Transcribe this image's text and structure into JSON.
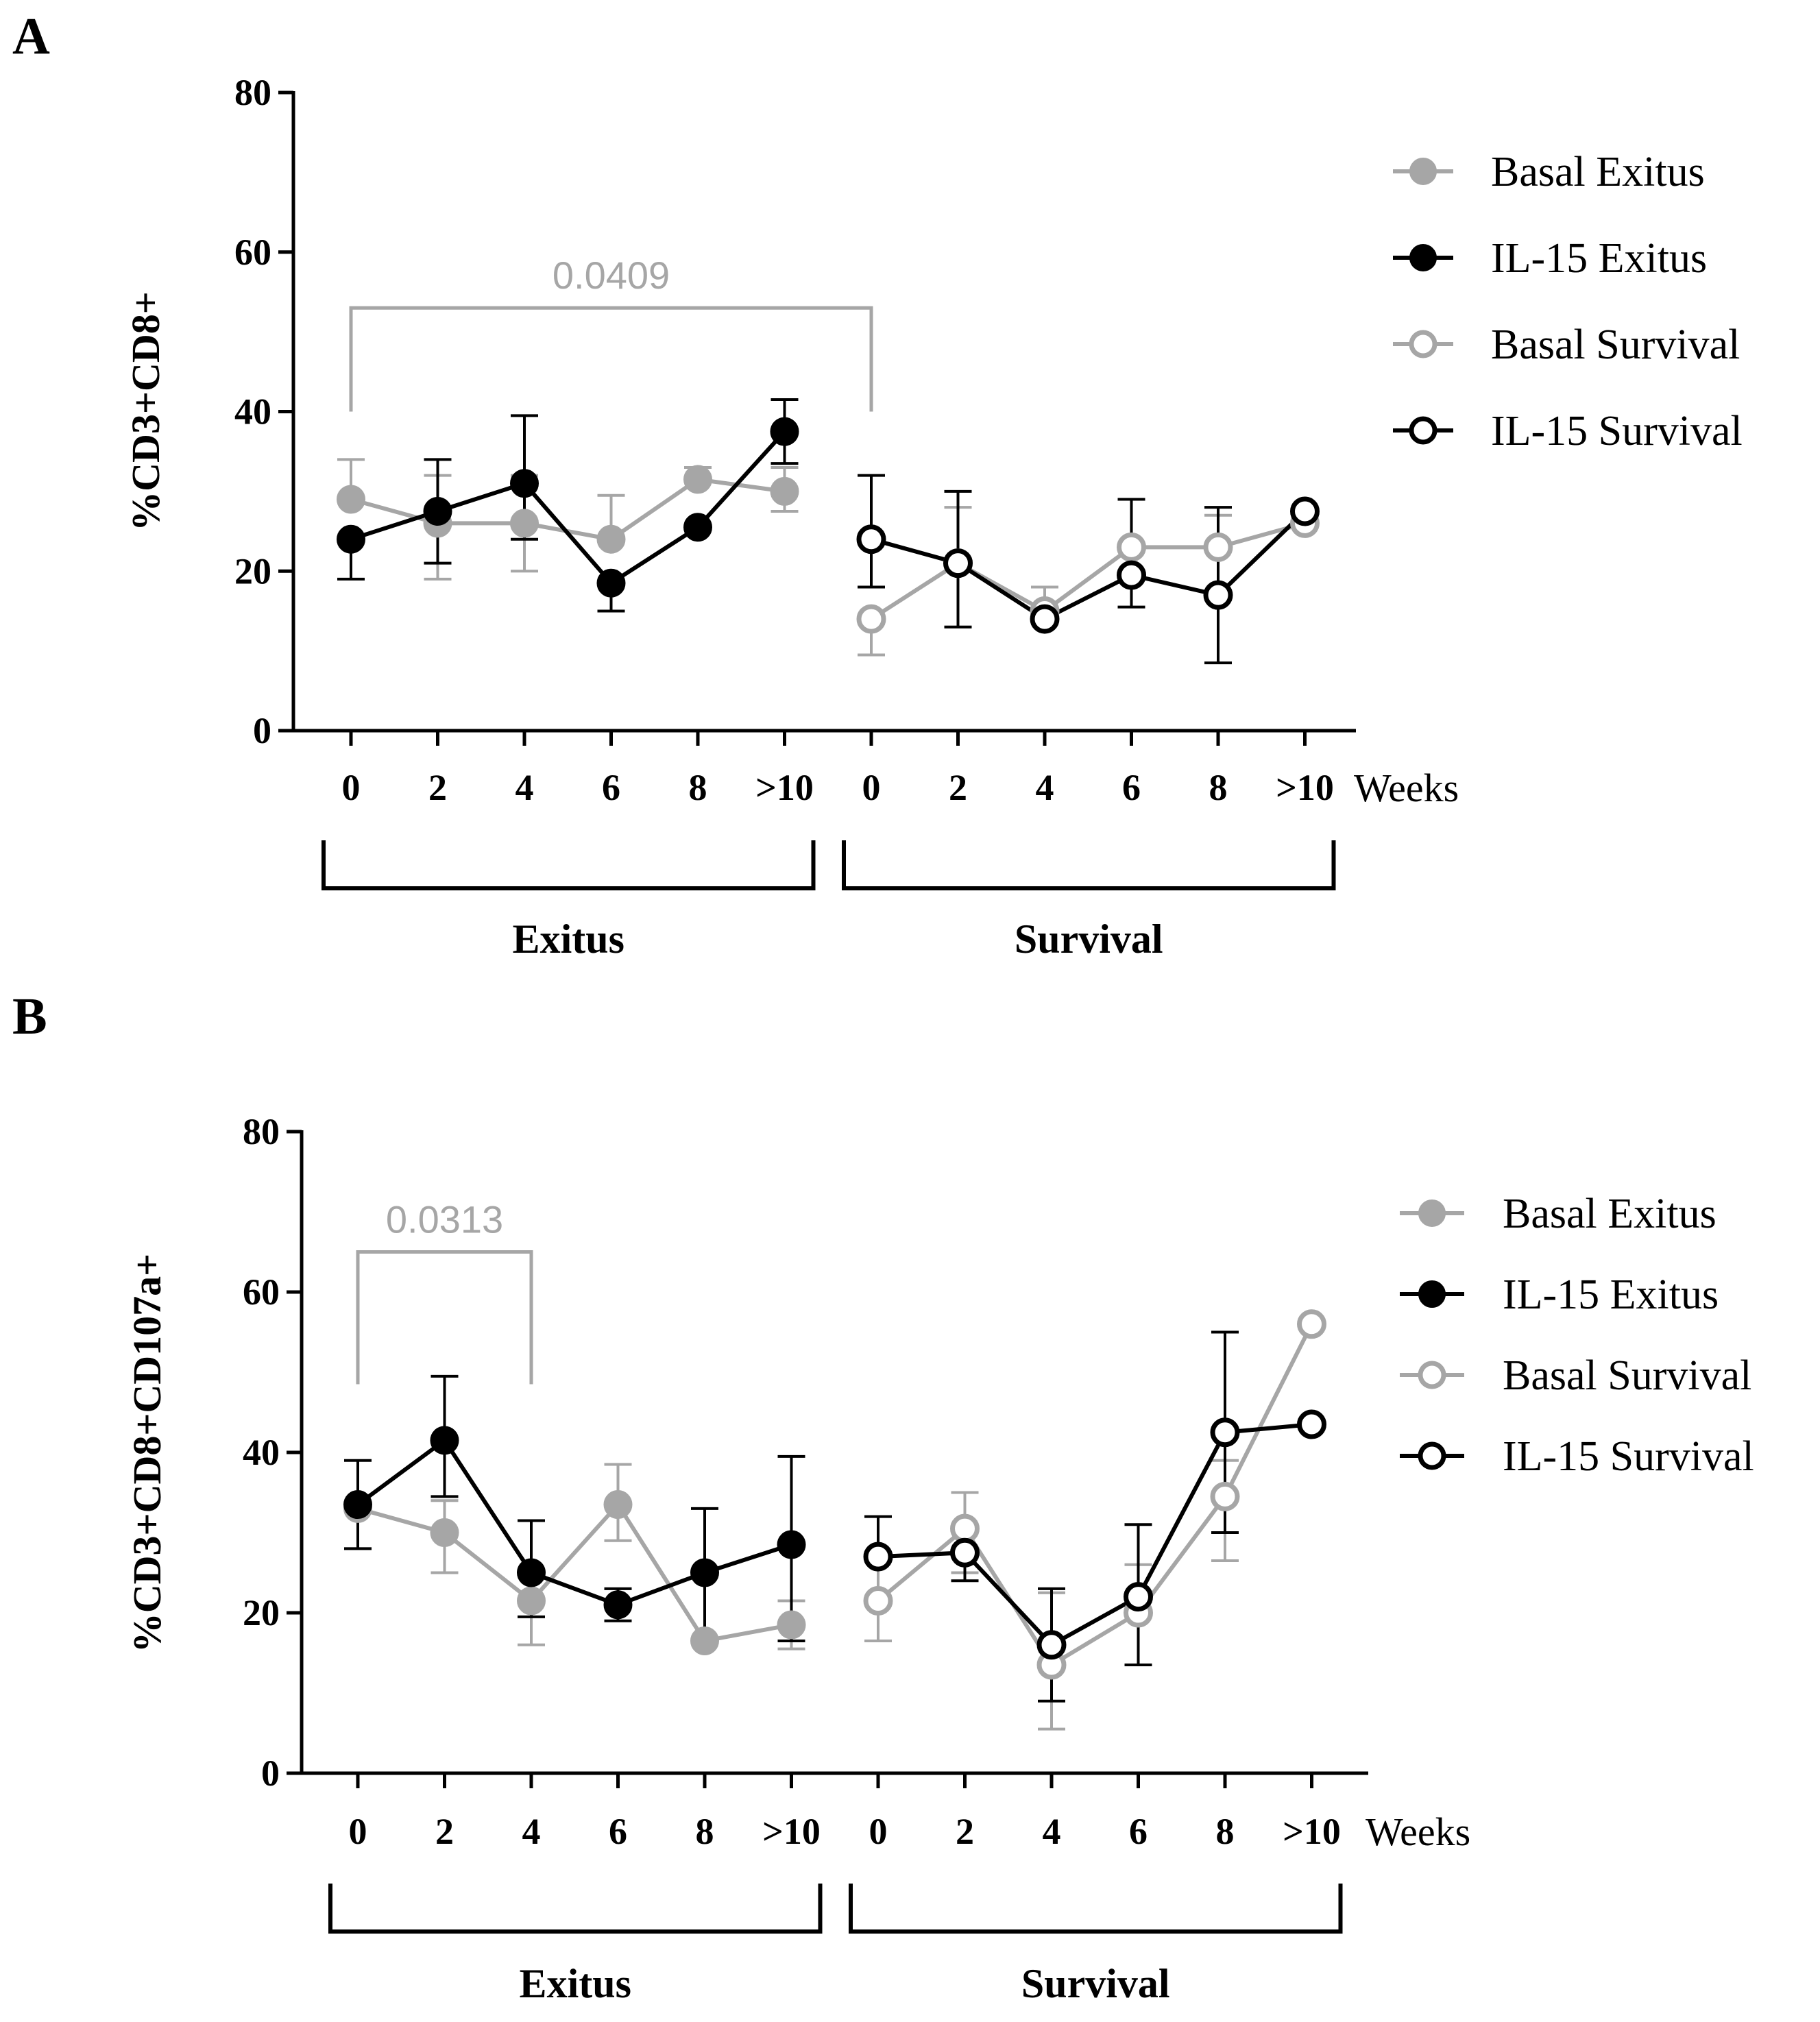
{
  "colors": {
    "gray": "#a6a6a6",
    "black": "#000000"
  },
  "chart_data": [
    {
      "type": "line",
      "panel": "A",
      "ylabel": "%CD3+CD8+",
      "xlabel": "Weeks",
      "ylim": [
        0,
        80
      ],
      "yticks": [
        0,
        20,
        40,
        60,
        80
      ],
      "categories": [
        "0",
        "2",
        "4",
        "6",
        "8",
        ">10"
      ],
      "groups": [
        "Exitus",
        "Survival"
      ],
      "significance": {
        "label": "0.0409",
        "from_index": 0,
        "to_index": 6,
        "y": 53
      },
      "series": [
        {
          "name": "Basal Exitus",
          "group": 0,
          "filled": true,
          "color": "gray",
          "values": [
            29,
            26,
            26,
            24,
            31.5,
            30
          ],
          "err_up": [
            5,
            6,
            6,
            5.5,
            1.5,
            3
          ],
          "err_down": [
            0,
            7,
            6,
            0,
            0,
            2.5
          ]
        },
        {
          "name": "IL-15 Exitus",
          "group": 0,
          "filled": true,
          "color": "black",
          "values": [
            24,
            27.5,
            31,
            18.5,
            25.5,
            37.5
          ],
          "err_up": [
            0,
            6.5,
            8.5,
            0,
            0,
            4
          ],
          "err_down": [
            5,
            6.5,
            7,
            3.5,
            0,
            4
          ]
        },
        {
          "name": "Basal Survival",
          "group": 1,
          "filled": false,
          "color": "gray",
          "values": [
            14,
            21,
            15,
            23,
            23,
            26
          ],
          "err_up": [
            0,
            7,
            3,
            0,
            4,
            0
          ],
          "err_down": [
            4.5,
            8,
            0,
            0,
            0,
            0
          ]
        },
        {
          "name": "IL-15 Survival",
          "group": 1,
          "filled": false,
          "color": "black",
          "values": [
            24,
            21,
            14,
            19.5,
            17,
            27.5
          ],
          "err_up": [
            8,
            9,
            0,
            9.5,
            11,
            0
          ],
          "err_down": [
            6,
            8,
            0,
            4,
            8.5,
            0
          ]
        }
      ]
    },
    {
      "type": "line",
      "panel": "B",
      "ylabel": "%CD3+CD8+CD107a+",
      "xlabel": "Weeks",
      "ylim": [
        0,
        80
      ],
      "yticks": [
        0,
        20,
        40,
        60,
        80
      ],
      "categories": [
        "0",
        "2",
        "4",
        "6",
        "8",
        ">10"
      ],
      "groups": [
        "Exitus",
        "Survival"
      ],
      "significance": {
        "label": "0.0313",
        "from_index": 0,
        "to_index": 2,
        "y": 65
      },
      "series": [
        {
          "name": "Basal Exitus",
          "group": 0,
          "filled": true,
          "color": "gray",
          "values": [
            33,
            30,
            21.5,
            33.5,
            16.5,
            18.5
          ],
          "err_up": [
            0,
            4,
            0,
            5,
            0,
            3
          ],
          "err_down": [
            5,
            5,
            5.5,
            4.5,
            0,
            3
          ]
        },
        {
          "name": "IL-15 Exitus",
          "group": 0,
          "filled": true,
          "color": "black",
          "values": [
            33.5,
            41.5,
            25,
            21,
            25,
            28.5
          ],
          "err_up": [
            5.5,
            8,
            6.5,
            2,
            8,
            11
          ],
          "err_down": [
            5.5,
            7,
            5.5,
            2,
            8.5,
            12
          ]
        },
        {
          "name": "Basal Survival",
          "group": 1,
          "filled": false,
          "color": "gray",
          "values": [
            21.5,
            30.5,
            13.5,
            20,
            34.5,
            56
          ],
          "err_up": [
            5.5,
            4.5,
            9,
            6,
            4.5,
            0
          ],
          "err_down": [
            5,
            5.5,
            8,
            6.5,
            8,
            0
          ]
        },
        {
          "name": "IL-15 Survival",
          "group": 1,
          "filled": false,
          "color": "black",
          "values": [
            27,
            27.5,
            16,
            22,
            42.5,
            43.5
          ],
          "err_up": [
            5,
            3,
            7,
            9,
            12.5,
            0
          ],
          "err_down": [
            0,
            3.5,
            7,
            8.5,
            12.5,
            0
          ]
        }
      ]
    }
  ]
}
